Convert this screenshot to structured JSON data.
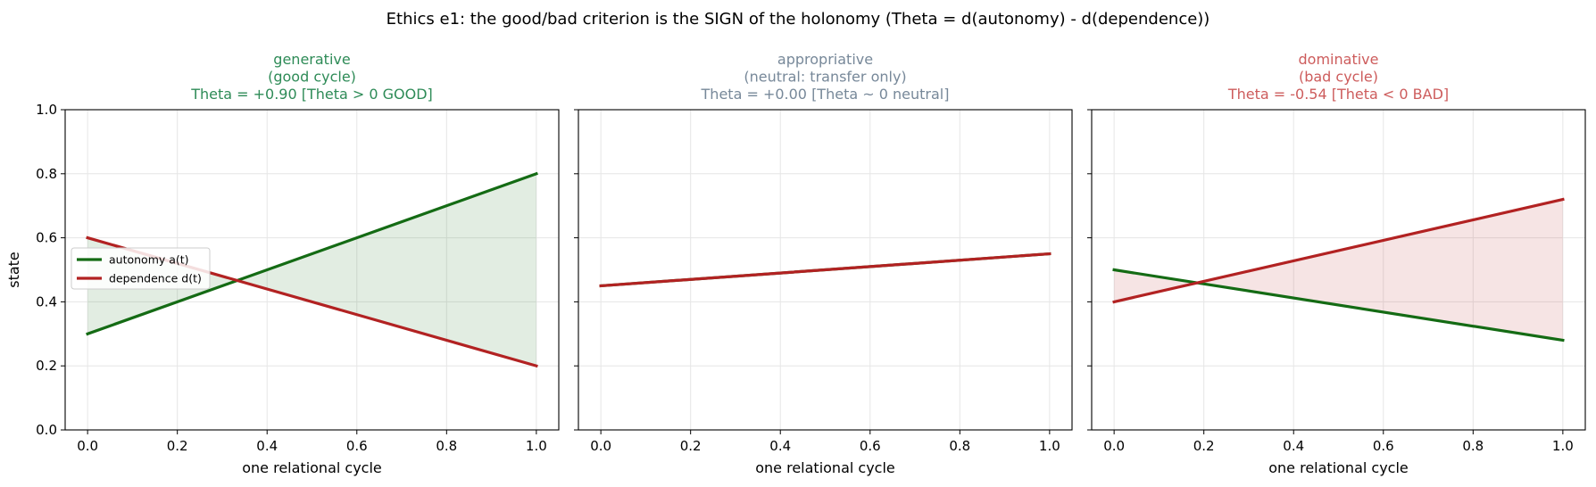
{
  "suptitle": "Ethics e1: the good/bad criterion is the SIGN of the holonomy (Theta = d(autonomy) - d(dependence))",
  "colors": {
    "autonomy": "#146b14",
    "dependence": "#b22222",
    "good_fill": "#146b14",
    "bad_fill": "#b22222",
    "good_title": "#2e8b57",
    "neutral_title": "#778899",
    "bad_title": "#cd5c5c",
    "grid": "#e6e6e6",
    "axis": "#000000"
  },
  "legend": {
    "placement": "center-left",
    "entries": [
      "autonomy a(t)",
      "dependence d(t)"
    ]
  },
  "chart_data": [
    {
      "type": "line",
      "title_lines": [
        "generative",
        "(good cycle)",
        "Theta = +0.90   [Theta > 0  GOOD]"
      ],
      "title_color": "good",
      "xlabel": "one relational cycle",
      "ylabel": "state",
      "xlim": [
        -0.05,
        1.05
      ],
      "ylim": [
        0.0,
        1.0
      ],
      "xticks": [
        "0.0",
        "0.2",
        "0.4",
        "0.6",
        "0.8",
        "1.0"
      ],
      "yticks": [
        "0.0",
        "0.2",
        "0.4",
        "0.6",
        "0.8",
        "1.0"
      ],
      "grid": true,
      "fill": "good",
      "show_legend": true,
      "series": [
        {
          "name": "autonomy a(t)",
          "color": "autonomy",
          "x": [
            0.0,
            1.0
          ],
          "y": [
            0.3,
            0.8
          ]
        },
        {
          "name": "dependence d(t)",
          "color": "dependence",
          "x": [
            0.0,
            1.0
          ],
          "y": [
            0.6,
            0.2
          ]
        }
      ]
    },
    {
      "type": "line",
      "title_lines": [
        "appropriative",
        "(neutral: transfer only)",
        "Theta = +0.00   [Theta ~ 0  neutral]"
      ],
      "title_color": "neutral",
      "xlabel": "one relational cycle",
      "ylabel": "",
      "xlim": [
        -0.05,
        1.05
      ],
      "ylim": [
        0.0,
        1.0
      ],
      "xticks": [
        "0.0",
        "0.2",
        "0.4",
        "0.6",
        "0.8",
        "1.0"
      ],
      "yticks": [],
      "grid": true,
      "fill": "none",
      "show_legend": false,
      "series": [
        {
          "name": "autonomy a(t)",
          "color": "autonomy",
          "x": [
            0.0,
            1.0
          ],
          "y": [
            0.45,
            0.55
          ]
        },
        {
          "name": "dependence d(t)",
          "color": "dependence",
          "x": [
            0.0,
            1.0
          ],
          "y": [
            0.45,
            0.55
          ]
        }
      ]
    },
    {
      "type": "line",
      "title_lines": [
        "dominative",
        "(bad cycle)",
        "Theta = -0.54   [Theta < 0  BAD]"
      ],
      "title_color": "bad",
      "xlabel": "one relational cycle",
      "ylabel": "",
      "xlim": [
        -0.05,
        1.05
      ],
      "ylim": [
        0.0,
        1.0
      ],
      "xticks": [
        "0.0",
        "0.2",
        "0.4",
        "0.6",
        "0.8",
        "1.0"
      ],
      "yticks": [],
      "grid": true,
      "fill": "bad",
      "show_legend": false,
      "series": [
        {
          "name": "autonomy a(t)",
          "color": "autonomy",
          "x": [
            0.0,
            1.0
          ],
          "y": [
            0.5,
            0.28
          ]
        },
        {
          "name": "dependence d(t)",
          "color": "dependence",
          "x": [
            0.0,
            1.0
          ],
          "y": [
            0.4,
            0.72
          ]
        }
      ]
    }
  ]
}
